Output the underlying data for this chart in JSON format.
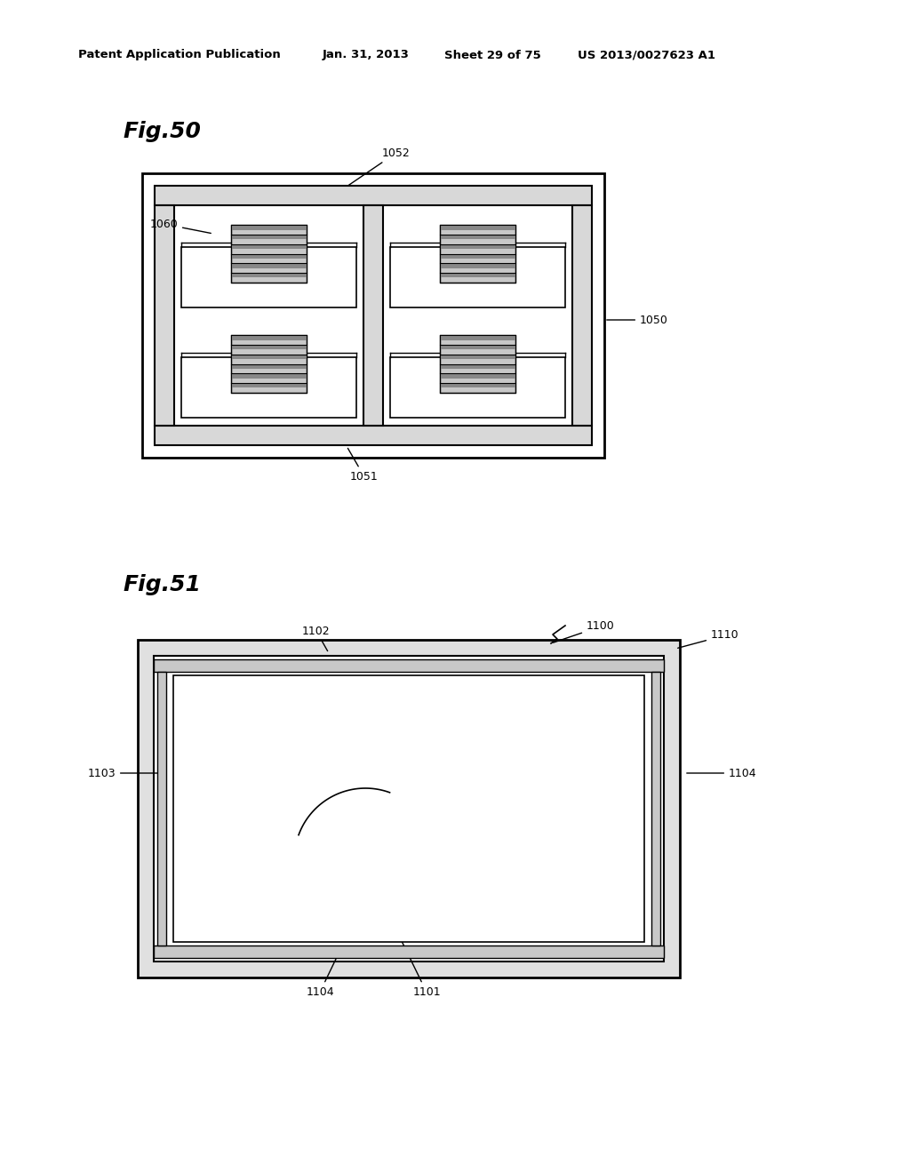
{
  "bg_color": "#ffffff",
  "header_text": "Patent Application Publication",
  "header_date": "Jan. 31, 2013",
  "header_sheet": "Sheet 29 of 75",
  "header_patent": "US 2013/0027623 A1",
  "fig50_label": "Fig.50",
  "fig51_label": "Fig.51",
  "text_color": "#000000",
  "line_color": "#000000",
  "gray_light": "#d8d8d8",
  "gray_dark": "#a0a0a0",
  "gray_led": "#888888"
}
